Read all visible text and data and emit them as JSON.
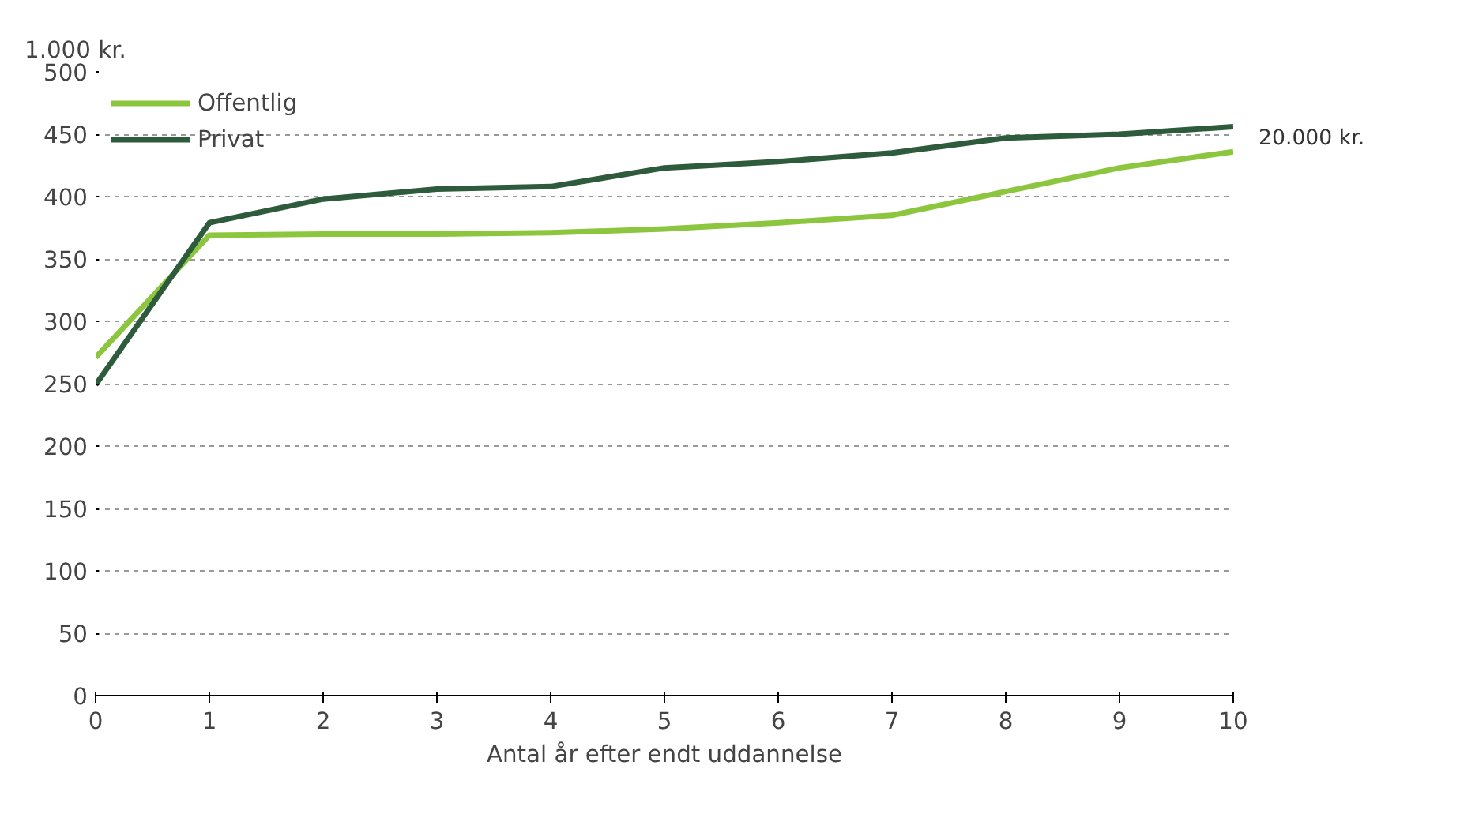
{
  "chart_data": {
    "type": "line",
    "xlabel": "Antal år efter endt uddannelse",
    "ylabel": "1.000 kr.",
    "x": [
      0,
      1,
      2,
      3,
      4,
      5,
      6,
      7,
      8,
      9,
      10
    ],
    "series": [
      {
        "name": "Offentlig",
        "color": "#8cc63e",
        "values": [
          271,
          369,
          370,
          370,
          371,
          374,
          379,
          385,
          404,
          423,
          436
        ]
      },
      {
        "name": "Privat",
        "color": "#2e5b3c",
        "values": [
          249,
          379,
          398,
          406,
          408,
          423,
          428,
          435,
          447,
          450,
          456
        ]
      }
    ],
    "xlim": [
      0,
      10
    ],
    "xticks": [
      0,
      1,
      2,
      3,
      4,
      5,
      6,
      7,
      8,
      9,
      10
    ],
    "ylim": [
      0,
      500
    ],
    "yticks": [
      0,
      50,
      100,
      150,
      200,
      250,
      300,
      350,
      400,
      450,
      500
    ],
    "grid": "y",
    "legend": "top left",
    "marker": "none",
    "line_style": "solid",
    "annotations": [
      "20.000 kr."
    ]
  }
}
